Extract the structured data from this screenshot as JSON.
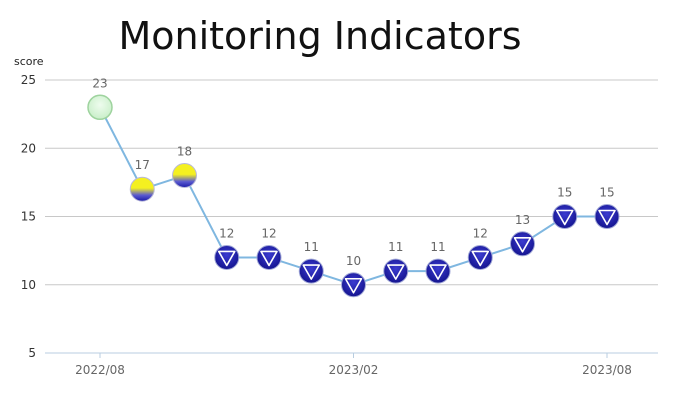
{
  "chart_data": {
    "type": "line",
    "title": "Monitoring Indicators",
    "ylabel": "score",
    "xlabel": "",
    "ylim": [
      5,
      25
    ],
    "yticks": [
      5,
      10,
      15,
      20,
      25
    ],
    "x": [
      "2022/08",
      "2022/09",
      "2022/10",
      "2022/11",
      "2022/12",
      "2023/01",
      "2023/02",
      "2023/03",
      "2023/04",
      "2023/05",
      "2023/06",
      "2023/07",
      "2023/08"
    ],
    "xticks": [
      "2022/08",
      "2023/02",
      "2023/08"
    ],
    "series": [
      {
        "name": "score",
        "values": [
          23,
          17,
          18,
          12,
          12,
          11,
          10,
          11,
          11,
          12,
          13,
          15,
          15
        ],
        "markers": [
          "good",
          "warn",
          "warn",
          "down",
          "down",
          "down",
          "down",
          "down",
          "down",
          "down",
          "down",
          "down",
          "down"
        ]
      }
    ],
    "colors": {
      "line": "#7fb7e0",
      "grid": "#c8c8c8",
      "good": "#d8f5d8",
      "warn_top": "#f2ee20",
      "warn_bottom": "#1a1aa8",
      "down": "#1f1fb0"
    }
  }
}
